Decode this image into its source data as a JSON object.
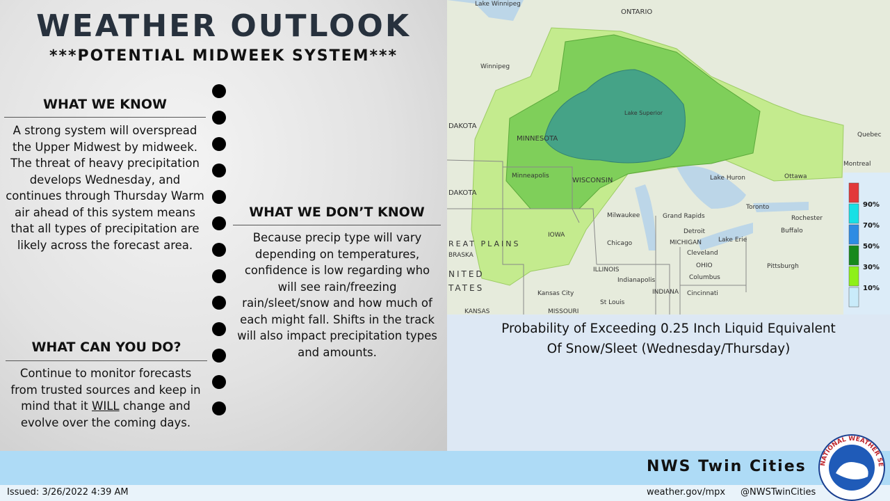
{
  "header": {
    "title": "WEATHER OUTLOOK",
    "subtitle": "***POTENTIAL MIDWEEK SYSTEM***"
  },
  "sections": [
    {
      "heading": "WHAT WE KNOW",
      "body": "A strong system will overspread the Upper Midwest by midweek. The threat of heavy precipitation develops Wednesday, and continues through Thursday Warm air ahead of this system means that all types of precipitation are likely across the forecast area."
    },
    {
      "heading": "WHAT WE DON’T KNOW",
      "body": "Because precip type will vary depending on temperatures, confidence is low regarding who will see rain/freezing rain/sleet/snow and how much of each might fall. Shifts in the track will also impact precipitation types and amounts."
    },
    {
      "heading": "WHAT CAN YOU DO?",
      "body_before": "Continue to monitor forecasts from trusted sources and keep in mind that it ",
      "emphasis": "WILL",
      "body_after": " change and evolve over the coming days."
    }
  ],
  "map": {
    "labels": [
      "Lake Winnipeg",
      "ONTARIO",
      "Winnipeg",
      "DAKOTA",
      "MINNESOTA",
      "Minneapolis",
      "DAKOTA",
      "WISCONSIN",
      "Lake Superior",
      "Lake Huron",
      "Ottawa",
      "Montreal",
      "Quebec",
      "Toronto",
      "Rochester",
      "Buffalo",
      "Milwaukee",
      "Grand Rapids",
      "Detroit",
      "Chicago",
      "MICHIGAN",
      "Cleveland",
      "OHIO",
      "Columbus",
      "Pittsburgh",
      "IOWA",
      "REAT PLAINS",
      "BRASKA",
      "NITED",
      "TATES",
      "ILLINOIS",
      "Indianapolis",
      "INDIANA",
      "Cincinnati",
      "Kansas City",
      "St Louis",
      "MISSOURI",
      "KANSAS",
      "Lake Erie"
    ],
    "legend": [
      "90%",
      "70%",
      "50%",
      "30%",
      "10%"
    ],
    "caption": [
      "Probability of Exceeding 0.25 Inch Liquid Equivalent",
      "Of Snow/Sleet (Wednesday/Thursday)"
    ]
  },
  "footer": {
    "office": "NWS Twin Cities",
    "issued": "Issued: 3/26/2022 4:39 AM",
    "website": "weather.gov/mpx",
    "social": "@NWSTwinCities",
    "logo_text": "NATIONAL WEATHER SERVICE"
  }
}
